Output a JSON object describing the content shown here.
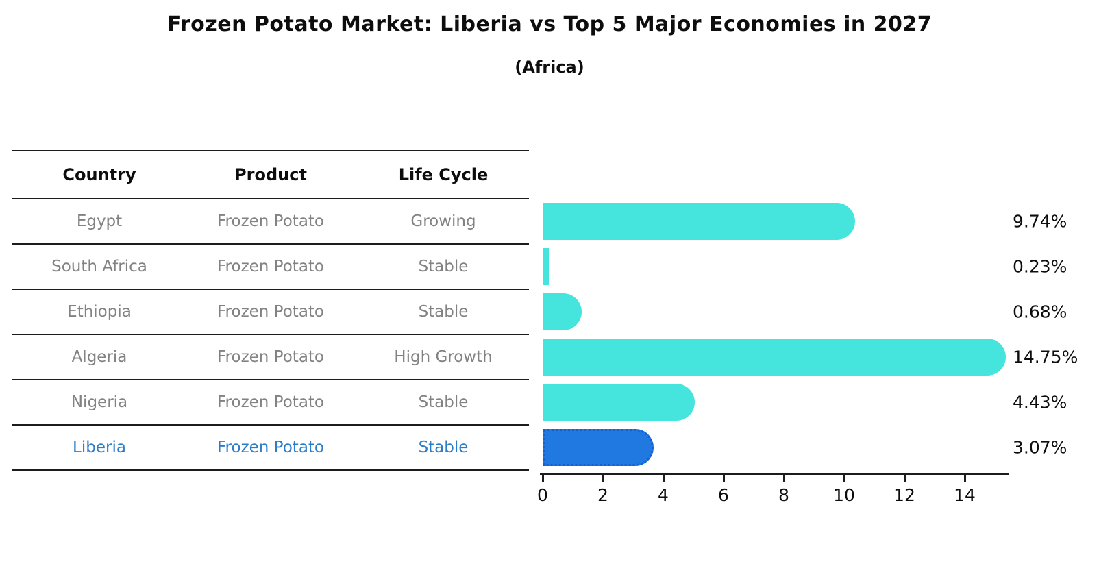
{
  "title": "Frozen Potato Market: Liberia vs Top 5 Major Economies in 2027",
  "subtitle": "(Africa)",
  "table": {
    "headers": [
      "Country",
      "Product",
      "Life Cycle"
    ],
    "rows": [
      {
        "country": "Egypt",
        "product": "Frozen Potato",
        "life_cycle": "Growing",
        "highlight": false
      },
      {
        "country": "South Africa",
        "product": "Frozen Potato",
        "life_cycle": "Stable",
        "highlight": false
      },
      {
        "country": "Ethiopia",
        "product": "Frozen Potato",
        "life_cycle": "Stable",
        "highlight": false
      },
      {
        "country": "Algeria",
        "product": "Frozen Potato",
        "life_cycle": "High Growth",
        "highlight": false
      },
      {
        "country": "Nigeria",
        "product": "Frozen Potato",
        "life_cycle": "Stable",
        "highlight": false
      },
      {
        "country": "Liberia",
        "product": "Frozen Potato",
        "life_cycle": "Stable",
        "highlight": true
      }
    ]
  },
  "chart_data": {
    "type": "bar",
    "orientation": "horizontal",
    "title": "Frozen Potato Market: Liberia vs Top 5 Major Economies in 2027",
    "subtitle": "(Africa)",
    "categories": [
      "Egypt",
      "South Africa",
      "Ethiopia",
      "Algeria",
      "Nigeria",
      "Liberia"
    ],
    "values": [
      9.74,
      0.23,
      0.68,
      14.75,
      4.43,
      3.07
    ],
    "value_labels": [
      "9.74%",
      "0.23%",
      "0.68%",
      "14.75%",
      "4.43%",
      "3.07%"
    ],
    "x_ticks": [
      0,
      2,
      4,
      6,
      8,
      10,
      12,
      14
    ],
    "xlim": [
      0,
      15.45
    ],
    "xlabel": "",
    "ylabel": "",
    "grid": false,
    "legend": false,
    "highlight_category": "Liberia",
    "colors": {
      "bar": "#45e5de",
      "highlight_bar": "#2079e0",
      "highlight_bar_border": "#1460cf",
      "highlight_text": "#2b7dc9",
      "row_text": "#828282",
      "header_text": "#0d0d0d",
      "axis": "#1c1c1c"
    }
  }
}
